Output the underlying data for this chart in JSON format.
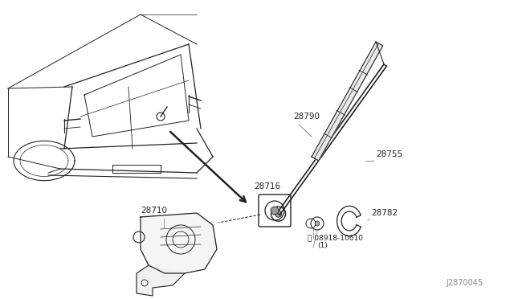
{
  "background_color": "#ffffff",
  "line_color": "#222222",
  "label_color": "#222222",
  "ref_line_color": "#888888",
  "diagram_id": "J2870045",
  "figsize": [
    6.4,
    3.72
  ],
  "dpi": 100
}
